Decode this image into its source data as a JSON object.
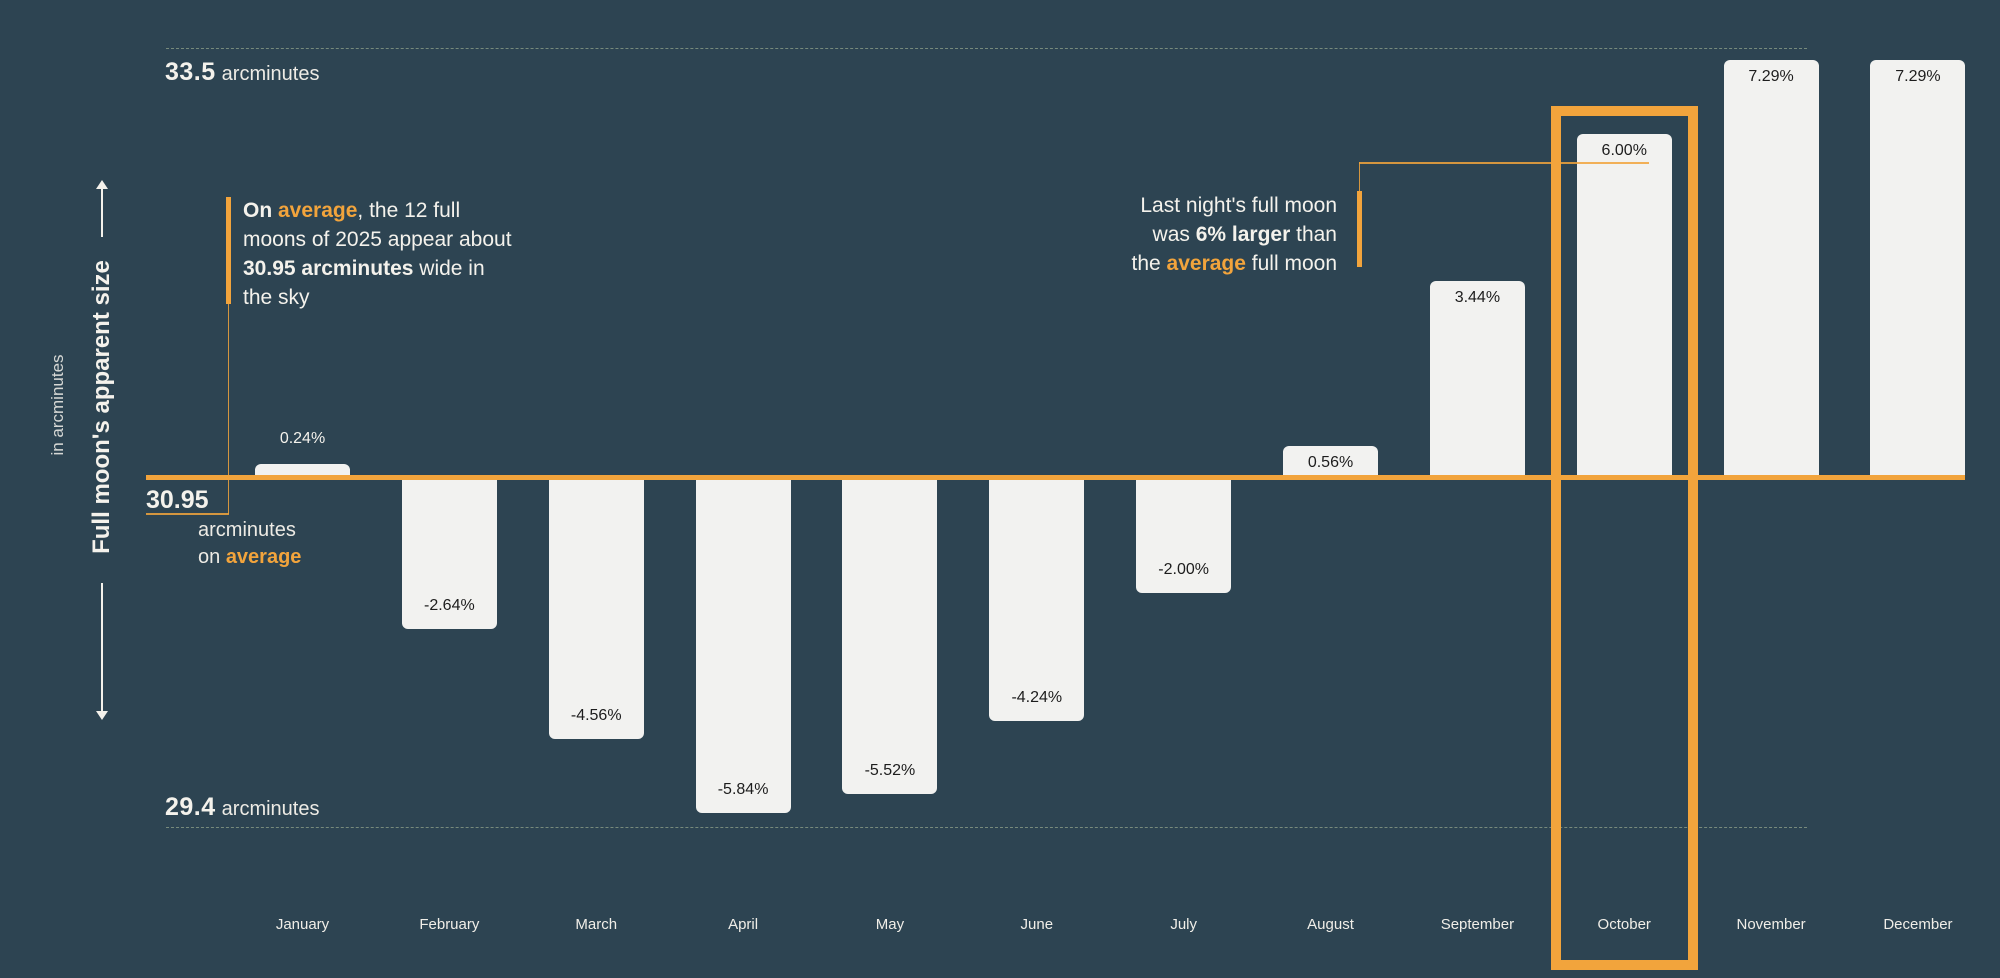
{
  "colors": {
    "background": "#2D4452",
    "accent_orange": "#F2A43C",
    "bar_fill": "#F2F2F0",
    "text_light": "#F4F2EC",
    "text_dark": "#1D1D1D",
    "reference_line": "#B4C59E"
  },
  "y_axis": {
    "title": "Full moon's apparent size",
    "unit": "in arcminutes"
  },
  "annotations": {
    "left": {
      "l1_bold": "On ",
      "l1_orange": "average",
      "l1_rest": ", the 12 full",
      "l2": "moons of 2025 appear about",
      "l3_bold": "30.95 arcminutes",
      "l3_rest": " wide in",
      "l4": "the sky"
    },
    "right": {
      "l1": "Last night's full moon",
      "l2_pre": "was ",
      "l2_bold": "6% larger",
      "l2_post": " than",
      "l3_pre": "the ",
      "l3_orange": "average",
      "l3_post": " full moon"
    }
  },
  "chart_data": {
    "type": "bar",
    "title": "Full moon's apparent size",
    "ylabel": "Full moon's apparent size",
    "ylabel_unit": "in arcminutes",
    "xlabel": "",
    "categories": [
      "January",
      "February",
      "March",
      "April",
      "May",
      "June",
      "July",
      "August",
      "September",
      "October",
      "November",
      "December"
    ],
    "values": [
      0.24,
      -2.64,
      -4.56,
      -5.84,
      -5.52,
      -4.24,
      -2.0,
      0.56,
      3.44,
      6.0,
      7.29,
      7.29
    ],
    "value_labels": [
      "0.24%",
      "-2.64%",
      "-4.56%",
      "-5.84%",
      "-5.52%",
      "-4.24%",
      "-2.00%",
      "0.56%",
      "3.44%",
      "6.00%",
      "7.29%",
      "7.29%"
    ],
    "value_unit": "% deviation from average apparent size",
    "baseline": {
      "value": 30.95,
      "label": "30.95",
      "unit": "arcminutes",
      "qualifier_prefix": "on ",
      "qualifier": "average"
    },
    "reference_top": {
      "value": 33.5,
      "label": "33.5",
      "unit": "arcminutes"
    },
    "reference_bottom": {
      "value": 29.4,
      "label": "29.4",
      "unit": "arcminutes"
    },
    "highlighted_category": "October",
    "grid": "off",
    "legend": "none"
  }
}
